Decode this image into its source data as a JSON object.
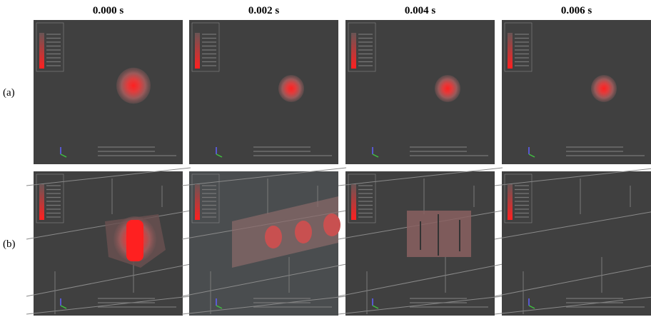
{
  "columns": [
    "0.000 s",
    "0.002 s",
    "0.004 s",
    "0.006 s"
  ],
  "rows": [
    "(a)",
    "(b)"
  ]
}
